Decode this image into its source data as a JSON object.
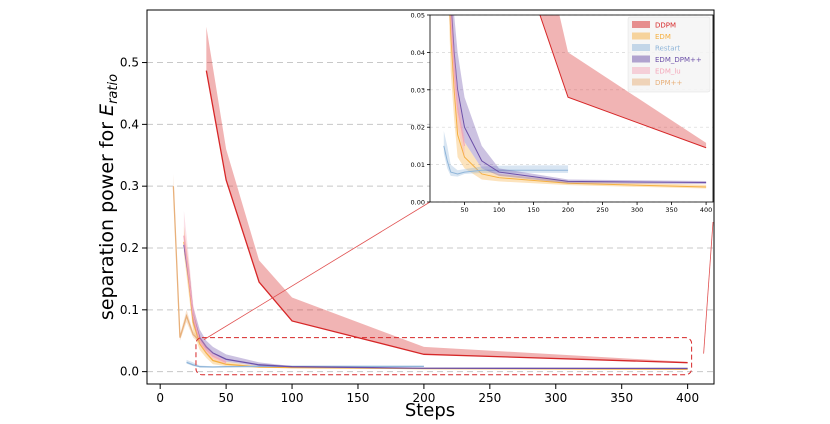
{
  "chart_data": {
    "type": "line",
    "title": "",
    "xlabel": "Steps",
    "ylabel": "separation power for E_ratio",
    "ylabel_main": "separation power for ",
    "ylabel_math": "E",
    "ylabel_sub": "ratio",
    "xlim": [
      -10,
      420
    ],
    "ylim": [
      -0.02,
      0.585
    ],
    "xticks": [
      0,
      50,
      100,
      150,
      200,
      250,
      300,
      350,
      400
    ],
    "yticks": [
      0.0,
      0.1,
      0.2,
      0.3,
      0.4,
      0.5
    ],
    "ytick_labels": [
      "0.0",
      "0.1",
      "0.2",
      "0.3",
      "0.4",
      "0.5"
    ],
    "grid": "horizontal-dashed",
    "legend": "top-right (inset)",
    "zoom_region": {
      "x": [
        15,
        400
      ],
      "y": [
        -0.005,
        0.055
      ]
    },
    "series": [
      {
        "name": "DDPM",
        "color": "#d62728",
        "x": [
          35,
          50,
          75,
          100,
          200,
          400
        ],
        "mean": [
          0.487,
          0.31,
          0.145,
          0.082,
          0.028,
          0.0145
        ],
        "upper": [
          0.558,
          0.36,
          0.18,
          0.12,
          0.04,
          0.0158
        ],
        "lower": [
          0.487,
          0.31,
          0.145,
          0.082,
          0.028,
          0.0145
        ]
      },
      {
        "name": "EDM",
        "color": "#f5b041",
        "x": [
          18,
          22,
          25,
          30,
          35,
          40,
          50,
          75,
          100,
          200,
          400
        ],
        "mean": [
          0.21,
          0.14,
          0.08,
          0.045,
          0.03,
          0.018,
          0.012,
          0.0075,
          0.0065,
          0.005,
          0.004
        ],
        "upper": [
          0.235,
          0.17,
          0.1,
          0.055,
          0.038,
          0.026,
          0.016,
          0.009,
          0.0075,
          0.0055,
          0.0046
        ],
        "lower": [
          0.19,
          0.12,
          0.065,
          0.035,
          0.022,
          0.012,
          0.009,
          0.006,
          0.0055,
          0.0045,
          0.0036
        ]
      },
      {
        "name": "Restart",
        "color": "#8fb5d9",
        "x": [
          20,
          25,
          30,
          40,
          50,
          75,
          100,
          150,
          200
        ],
        "mean": [
          0.015,
          0.011,
          0.008,
          0.0075,
          0.008,
          0.0085,
          0.0085,
          0.0085,
          0.0085
        ],
        "upper": [
          0.019,
          0.015,
          0.01,
          0.0085,
          0.0088,
          0.0095,
          0.0097,
          0.0098,
          0.0098
        ],
        "lower": [
          0.013,
          0.009,
          0.007,
          0.0068,
          0.0075,
          0.0078,
          0.0078,
          0.0078,
          0.0078
        ]
      },
      {
        "name": "EDM_DPM++",
        "color": "#6c50a8",
        "x": [
          18,
          22,
          25,
          30,
          35,
          40,
          50,
          75,
          100,
          200,
          400
        ],
        "mean": [
          0.205,
          0.15,
          0.09,
          0.055,
          0.04,
          0.03,
          0.02,
          0.011,
          0.008,
          0.0055,
          0.0052
        ],
        "upper": [
          0.215,
          0.165,
          0.105,
          0.068,
          0.05,
          0.04,
          0.028,
          0.015,
          0.009,
          0.006,
          0.0056
        ],
        "lower": [
          0.195,
          0.14,
          0.08,
          0.048,
          0.034,
          0.024,
          0.016,
          0.009,
          0.007,
          0.005,
          0.0048
        ]
      },
      {
        "name": "EDM_lu",
        "color": "#f4a7b9",
        "x": [
          18,
          22,
          25,
          30,
          35,
          40,
          50
        ],
        "mean": [
          0.22,
          0.15,
          0.09,
          0.05,
          0.035,
          0.025,
          0.015
        ],
        "upper": [
          0.26,
          0.18,
          0.11,
          0.06,
          0.042,
          0.03,
          0.018
        ],
        "lower": [
          0.2,
          0.13,
          0.08,
          0.045,
          0.03,
          0.02,
          0.012
        ]
      },
      {
        "name": "DPM++",
        "color": "#e8b07a",
        "x": [
          10,
          15,
          20,
          25,
          30
        ],
        "mean": [
          0.3,
          0.055,
          0.09,
          0.06,
          0.05
        ],
        "upper": [
          0.32,
          0.06,
          0.1,
          0.065,
          0.055
        ],
        "lower": [
          0.29,
          0.05,
          0.08,
          0.055,
          0.045
        ]
      }
    ],
    "inset": {
      "xlim": [
        0,
        410
      ],
      "ylim": [
        0,
        0.05
      ],
      "xticks": [
        50,
        100,
        150,
        200,
        250,
        300,
        350,
        400
      ],
      "yticks": [
        0.0,
        0.01,
        0.02,
        0.03,
        0.04,
        0.05
      ],
      "ytick_labels": [
        "0.00",
        "0.01",
        "0.02",
        "0.03",
        "0.04",
        "0.05"
      ]
    }
  }
}
